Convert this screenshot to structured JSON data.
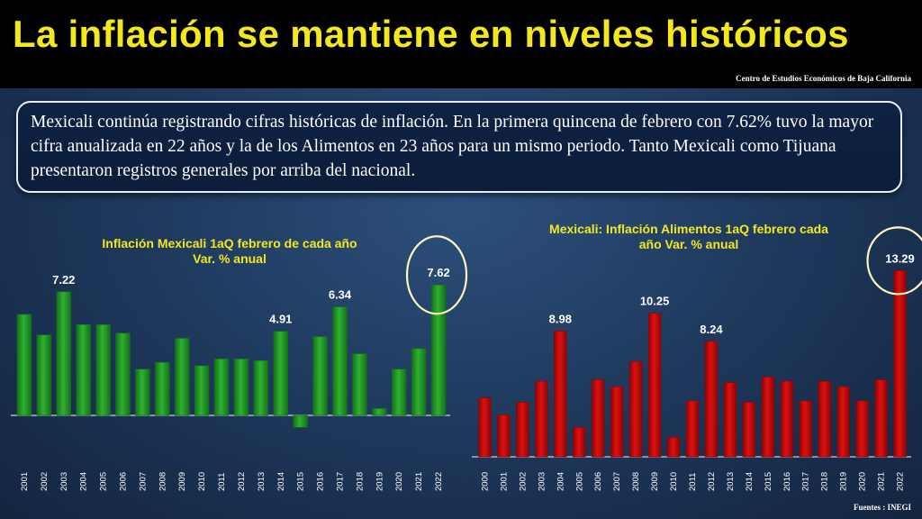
{
  "header": {
    "title": "La inflación se mantiene en niveles históricos",
    "source": "Centro de Estudios Económicos de Baja California"
  },
  "summary": {
    "text": "Mexicali continúa registrando cifras históricas de inflación. En la primera quincena de febrero con 7.62% tuvo la mayor cifra anualizada en 22 años y la de los Alimentos en 23 años para un mismo periodo.  Tanto Mexicali como Tijuana presentaron registros  generales por arriba del nacional."
  },
  "footer": {
    "source": "Fuentes :   INEGI"
  },
  "colors": {
    "title": "#f3e81d",
    "green_bar": "#2fb12f",
    "red_bar": "#e01010",
    "highlight_circle": "#fff6c0"
  },
  "chart_data": [
    {
      "type": "bar",
      "title_lines": [
        "Inflación Mexicali 1aQ febrero de cada año",
        "Var. % anual"
      ],
      "categories": [
        "2001",
        "2002",
        "2003",
        "2004",
        "2005",
        "2006",
        "2007",
        "2008",
        "2009",
        "2010",
        "2011",
        "2012",
        "2013",
        "2014",
        "2015",
        "2016",
        "2017",
        "2018",
        "2019",
        "2020",
        "2021",
        "2022"
      ],
      "values": [
        5.9,
        4.7,
        7.22,
        5.3,
        5.3,
        4.8,
        2.7,
        3.1,
        4.5,
        2.9,
        3.3,
        3.3,
        3.2,
        4.91,
        -0.7,
        4.6,
        6.34,
        3.6,
        0.4,
        2.7,
        3.9,
        7.62
      ],
      "labels": {
        "2003": "7.22",
        "2014": "4.91",
        "2017": "6.34",
        "2022": "7.62"
      },
      "highlight": "2022",
      "ylim": [
        -1,
        9
      ],
      "grid": false,
      "legend": "none"
    },
    {
      "type": "bar",
      "title_lines": [
        "Mexicali: Inflación Alimentos 1aQ febrero cada",
        "año  Var. % anual"
      ],
      "categories": [
        "2000",
        "2001",
        "2002",
        "2003",
        "2004",
        "2005",
        "2006",
        "2007",
        "2008",
        "2009",
        "2010",
        "2011",
        "2012",
        "2013",
        "2014",
        "2015",
        "2016",
        "2017",
        "2018",
        "2019",
        "2020",
        "2021",
        "2022"
      ],
      "values": [
        4.2,
        3.0,
        3.9,
        5.4,
        8.98,
        2.1,
        5.5,
        5.0,
        6.8,
        10.25,
        1.4,
        4.0,
        8.24,
        5.3,
        3.9,
        5.7,
        5.4,
        4.0,
        5.4,
        5.0,
        4.0,
        5.5,
        13.29
      ],
      "labels": {
        "2004": "8.98",
        "2009": "10.25",
        "2012": "8.24",
        "2022": "13.29"
      },
      "highlight": "2022",
      "ylim": [
        0,
        15
      ],
      "grid": false,
      "legend": "none"
    }
  ]
}
